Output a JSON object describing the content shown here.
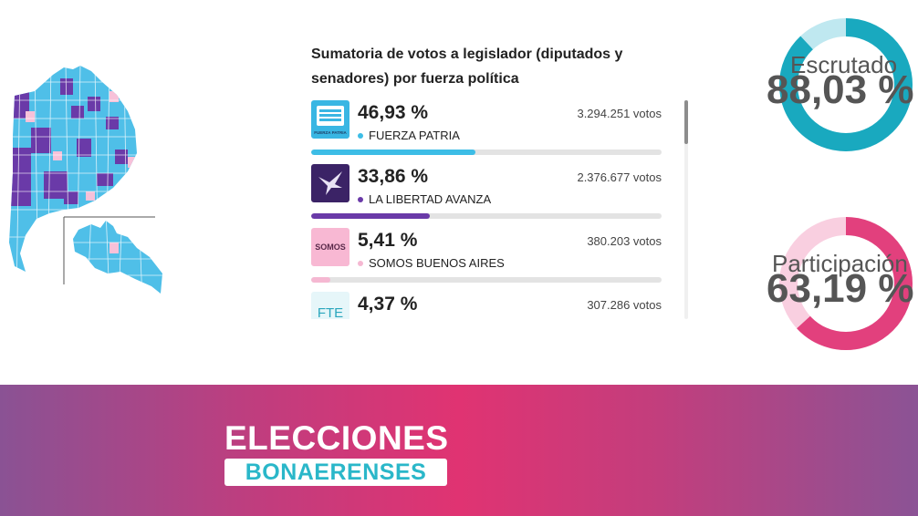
{
  "panel": {
    "title": "Sumatoria de votos a legislador (diputados y senadores) por fuerza política"
  },
  "results": [
    {
      "percent_text": "46,93 %",
      "votes_text": "3.294.251 votos",
      "party": "FUERZA PATRIA",
      "share": 46.93,
      "color": "#3dbde6",
      "logo": "fuerza-patria-logo",
      "logo_text": "FUERZA PATRIA"
    },
    {
      "percent_text": "33,86 %",
      "votes_text": "2.376.677 votos",
      "party": "LA LIBERTAD AVANZA",
      "share": 33.86,
      "color": "#6a3aa8",
      "logo": "la-libertad-avanza-logo",
      "logo_text": ""
    },
    {
      "percent_text": "5,41 %",
      "votes_text": "380.203 votos",
      "party": "SOMOS BUENOS AIRES",
      "share": 5.41,
      "color": "#f5b8d2",
      "logo": "somos-logo",
      "logo_text": "SOMOS"
    },
    {
      "percent_text": "4,37 %",
      "votes_text": "307.286 votos",
      "party": "",
      "share": 4.37,
      "color": "#42c1d0",
      "logo": "fte-logo",
      "logo_text": "FTE"
    }
  ],
  "gauges": [
    {
      "label": "Escrutado",
      "value_text": "88,03 %",
      "value": 88.03,
      "color": "#19a9bf",
      "track_color": "#bfe8f0"
    },
    {
      "label": "Participación",
      "value_text": "63,19 %",
      "value": 63.19,
      "color": "#e2407d",
      "track_color": "#f9cfe0"
    }
  ],
  "banner": {
    "title": "ELECCIONES",
    "subtitle": "BONAERENSES"
  },
  "colors": {
    "accent_blue": "#3dbde6",
    "accent_purple": "#6a3aa8",
    "accent_pink": "#e2407d"
  }
}
